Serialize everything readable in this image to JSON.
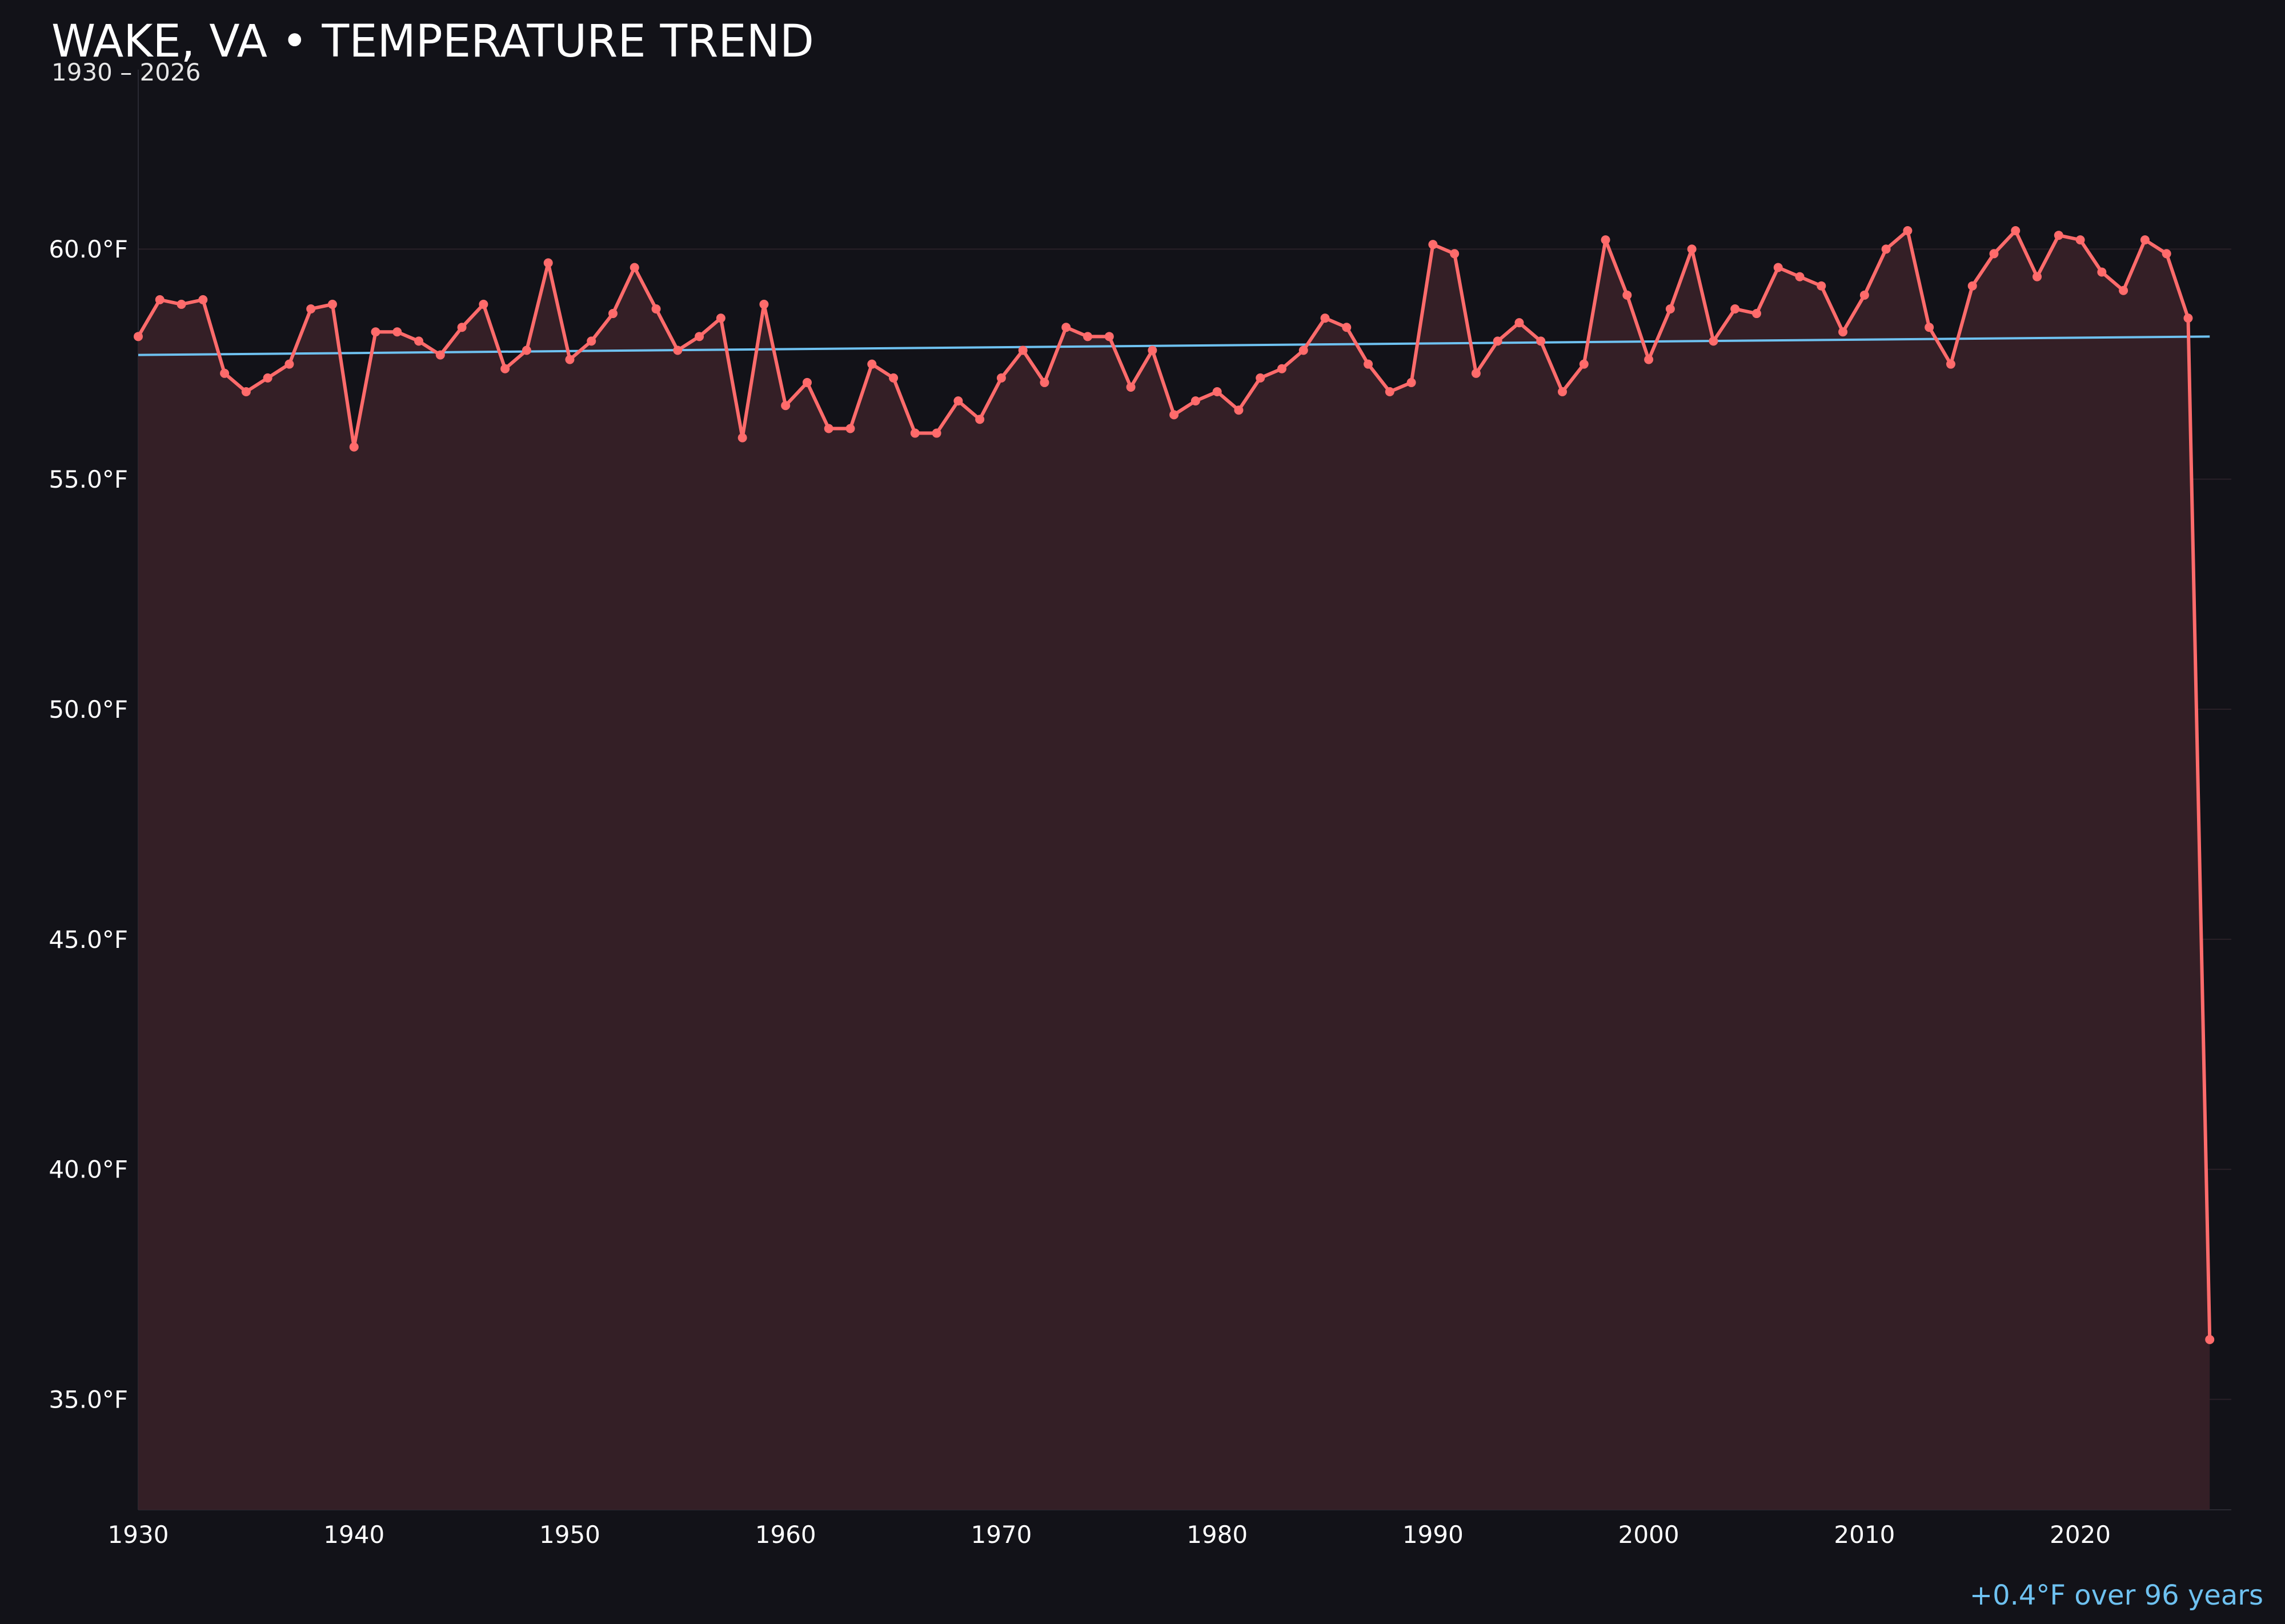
{
  "colors": {
    "background": "#121218",
    "series": "#ff6b6b",
    "trend": "#6ec1f0",
    "area_fill": "#341f26",
    "grid": "#2a2028",
    "text": "#ffffff"
  },
  "header": {
    "title": "WAKE, VA • TEMPERATURE TREND",
    "subtitle": "1930 – 2026"
  },
  "footer": {
    "trend_note": "+0.4°F over 96 years"
  },
  "chart_data": {
    "type": "line",
    "title": "WAKE, VA • TEMPERATURE TREND",
    "subtitle": "1930 – 2026",
    "xlabel": "",
    "ylabel": "",
    "xlim": [
      1930,
      2027
    ],
    "ylim": [
      32.6,
      63.9
    ],
    "grid": true,
    "fill_under_series": true,
    "x_ticks": [
      1930,
      1940,
      1950,
      1960,
      1970,
      1980,
      1990,
      2000,
      2010,
      2020
    ],
    "x_tick_labels": [
      "1930",
      "1940",
      "1950",
      "1960",
      "1970",
      "1980",
      "1990",
      "2000",
      "2010",
      "2020"
    ],
    "y_ticks": [
      35,
      40,
      45,
      50,
      55,
      60
    ],
    "y_tick_labels": [
      "35.0°F",
      "40.0°F",
      "45.0°F",
      "50.0°F",
      "55.0°F",
      "60.0°F"
    ],
    "annotation": "+0.4°F over 96 years",
    "series": [
      {
        "x": [
          1930,
          1931,
          1932,
          1933,
          1934,
          1935,
          1936,
          1937,
          1938,
          1939,
          1940,
          1941,
          1942,
          1943,
          1944,
          1945,
          1946,
          1947,
          1948,
          1949,
          1950,
          1951,
          1952,
          1953,
          1954,
          1955,
          1956,
          1957,
          1958,
          1959,
          1960,
          1961,
          1962,
          1963,
          1964,
          1965,
          1966,
          1967,
          1968,
          1969,
          1970,
          1971,
          1972,
          1973,
          1974,
          1975,
          1976,
          1977,
          1978,
          1979,
          1980,
          1981,
          1982,
          1983,
          1984,
          1985,
          1986,
          1987,
          1988,
          1989,
          1990,
          1991,
          1992,
          1993,
          1994,
          1995,
          1996,
          1997,
          1998,
          1999,
          2000,
          2001,
          2002,
          2003,
          2004,
          2005,
          2006,
          2007,
          2008,
          2009,
          2010,
          2011,
          2012,
          2013,
          2014,
          2015,
          2016,
          2017,
          2018,
          2019,
          2020,
          2021,
          2022,
          2023,
          2024,
          2025,
          2026
        ],
        "values": [
          58.1,
          58.9,
          58.8,
          58.9,
          57.3,
          56.9,
          57.2,
          57.5,
          58.7,
          58.8,
          55.7,
          58.2,
          58.2,
          58.0,
          57.7,
          58.3,
          58.8,
          57.4,
          57.8,
          59.7,
          57.6,
          58.0,
          58.6,
          59.6,
          58.7,
          57.8,
          58.1,
          58.5,
          55.9,
          58.8,
          56.6,
          57.1,
          56.1,
          56.1,
          57.5,
          57.2,
          56.0,
          56.0,
          56.7,
          56.3,
          57.2,
          57.8,
          57.1,
          58.3,
          58.1,
          58.1,
          57.0,
          57.8,
          56.4,
          56.7,
          56.9,
          56.5,
          57.2,
          57.4,
          57.8,
          58.5,
          58.3,
          57.5,
          56.9,
          57.1,
          60.1,
          59.9,
          57.3,
          58.0,
          58.4,
          58.0,
          56.9,
          57.5,
          60.2,
          59.0,
          57.6,
          58.7,
          60.0,
          58.0,
          58.7,
          58.6,
          59.6,
          59.4,
          59.2,
          58.2,
          59.0,
          60.0,
          60.4,
          58.3,
          57.5,
          59.2,
          59.9,
          60.4,
          59.4,
          60.3,
          60.2,
          59.5,
          59.1,
          60.2,
          59.9,
          58.5,
          36.3
        ]
      },
      {
        "x": [
          1930,
          2026
        ],
        "values": [
          57.7,
          58.1
        ]
      }
    ]
  }
}
